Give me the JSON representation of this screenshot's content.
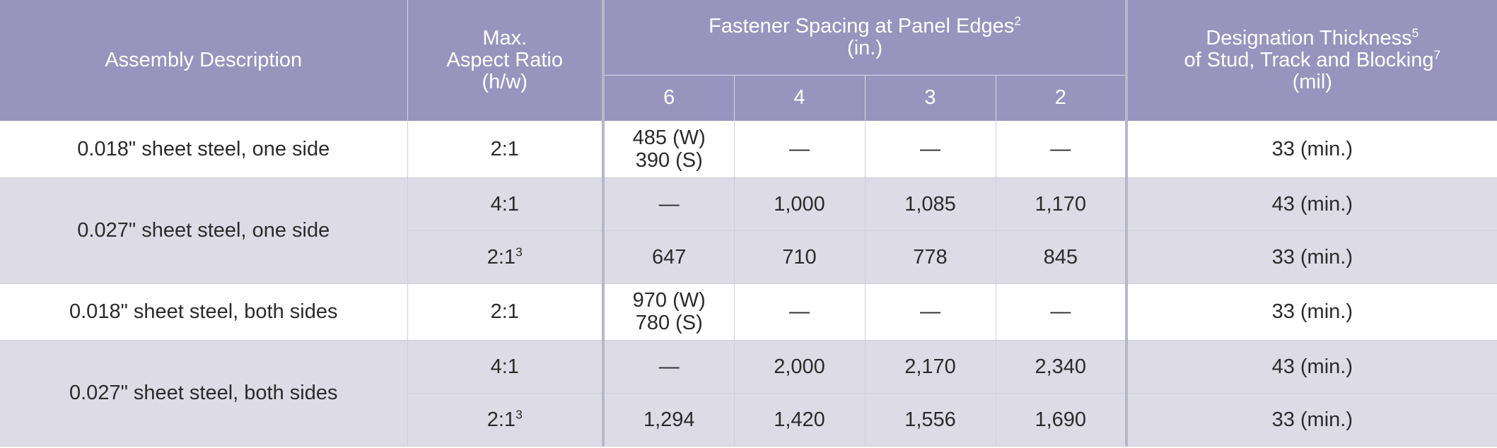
{
  "header": {
    "assembly_description": "Assembly Description",
    "max_aspect_ratio": [
      "Max.",
      "Aspect Ratio",
      "(h/w)"
    ],
    "fastener_spacing": {
      "title": "Fastener Spacing at Panel Edges",
      "sup": "2",
      "unit": "(in.)"
    },
    "spacing_values": [
      "6",
      "4",
      "3",
      "2"
    ],
    "designation_thickness": {
      "line1": "Designation Thickness",
      "line1_sup": "5",
      "line2": "of Stud, Track and Blocking",
      "line2_sup": "7",
      "line3": "(mil)"
    }
  },
  "rows": [
    {
      "description": "0.018\" sheet steel, one side",
      "ratio": "2:1",
      "ratio_sup": "",
      "s6": "485 (W)",
      "s6b": "390 (S)",
      "s4": "—",
      "s3": "—",
      "s2": "—",
      "thickness": "33 (min.)"
    },
    {
      "description": "0.027\" sheet steel, one side",
      "ratio": "4:1",
      "ratio_sup": "",
      "s6": "—",
      "s4": "1,000",
      "s3": "1,085",
      "s2": "1,170",
      "thickness": "43 (min.)"
    },
    {
      "ratio": "2:1",
      "ratio_sup": "3",
      "s6": "647",
      "s4": "710",
      "s3": "778",
      "s2": "845",
      "thickness": "33 (min.)"
    },
    {
      "description": "0.018\" sheet steel, both sides",
      "ratio": "2:1",
      "ratio_sup": "",
      "s6": "970 (W)",
      "s6b": "780 (S)",
      "s4": "—",
      "s3": "—",
      "s2": "—",
      "thickness": "33 (min.)"
    },
    {
      "description": "0.027\" sheet steel, both sides",
      "ratio": "4:1",
      "ratio_sup": "",
      "s6": "—",
      "s4": "2,000",
      "s3": "2,170",
      "s2": "2,340",
      "thickness": "43 (min.)"
    },
    {
      "ratio": "2:1",
      "ratio_sup": "3",
      "s6": "1,294",
      "s4": "1,420",
      "s3": "1,556",
      "s2": "1,690",
      "thickness": "33 (min.)"
    }
  ],
  "colors": {
    "header_bg": "#9795bd",
    "row_alt_bg": "#dcdbe6",
    "row_bg": "#ffffff",
    "text": "#2b2b2b"
  }
}
